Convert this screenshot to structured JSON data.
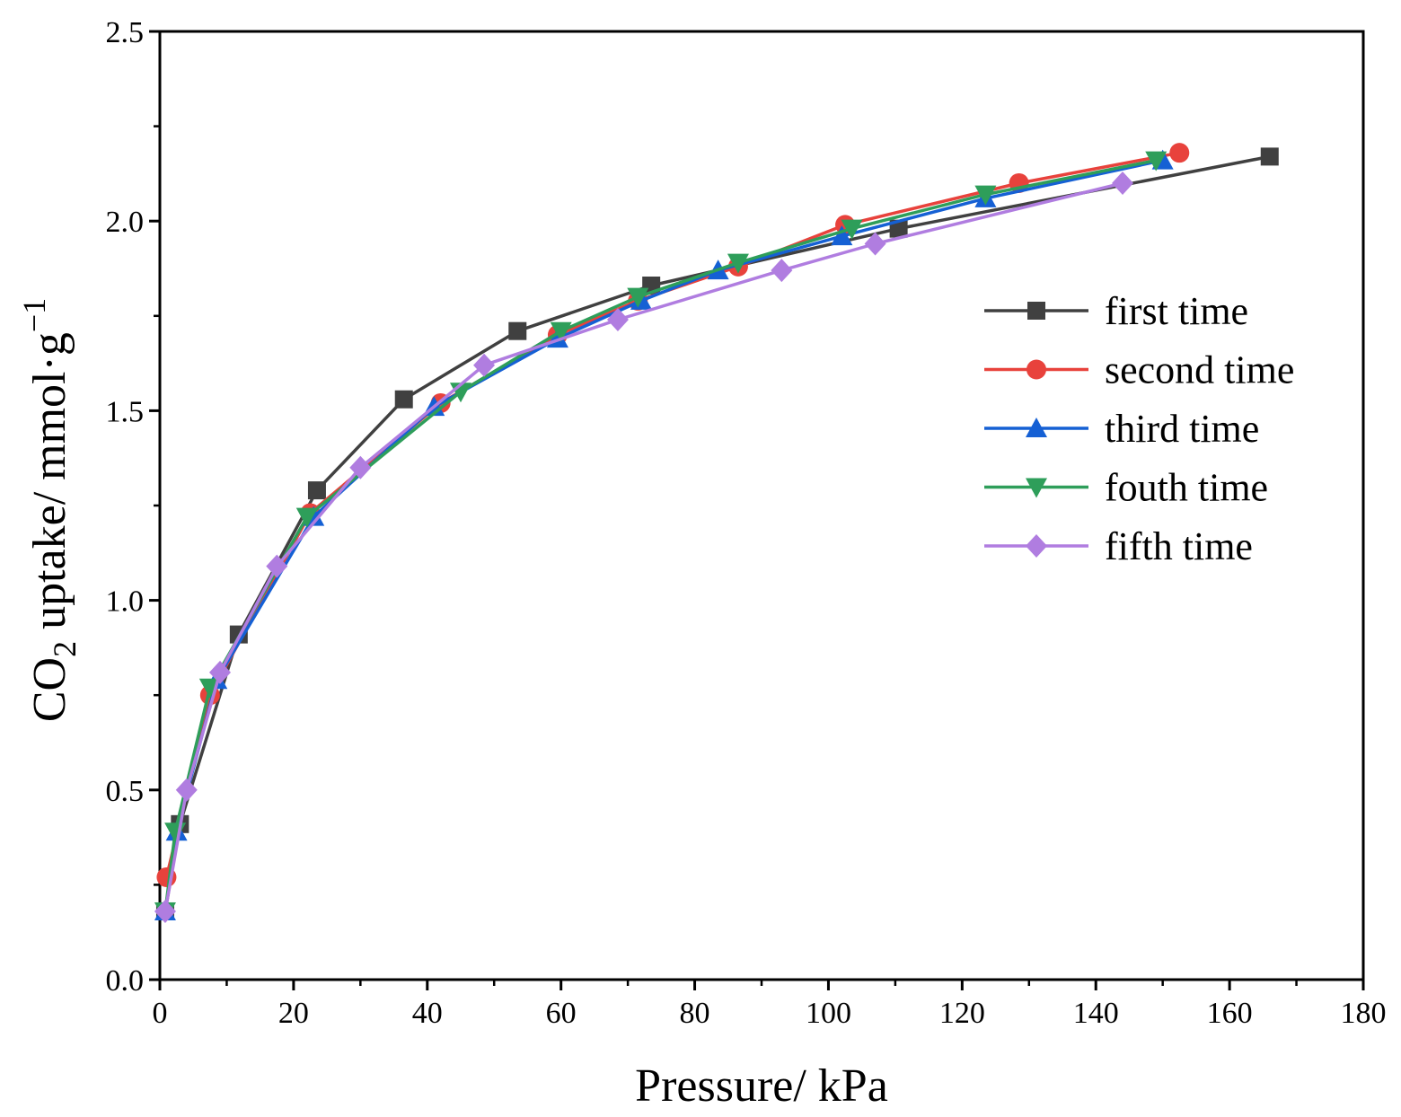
{
  "chart_data": {
    "type": "line",
    "title": "",
    "xlabel": "Pressure/ kPa",
    "ylabel": {
      "prefix": "CO",
      "sub": "2",
      "middle": " uptake/ mmol·g",
      "sup": "−1"
    },
    "xlim": [
      0,
      180
    ],
    "ylim": [
      0,
      2.5
    ],
    "xticks": [
      "0",
      "20",
      "40",
      "60",
      "80",
      "100",
      "120",
      "140",
      "160",
      "180"
    ],
    "yticks": [
      "0.0",
      "0.5",
      "1.0",
      "1.5",
      "2.0",
      "2.5"
    ],
    "legend_position": "center-right",
    "series": [
      {
        "name": "first time",
        "color": "#404040",
        "marker": "square",
        "x": [
          0.8,
          3.0,
          11.8,
          23.5,
          36.5,
          53.5,
          73.5,
          110.5,
          166.0
        ],
        "y": [
          0.18,
          0.41,
          0.91,
          1.29,
          1.53,
          1.71,
          1.83,
          1.98,
          2.17
        ]
      },
      {
        "name": "second time",
        "color": "#e8423c",
        "marker": "circle",
        "x": [
          1.0,
          7.5,
          22.5,
          42.0,
          59.5,
          71.5,
          86.5,
          102.5,
          128.5,
          152.5
        ],
        "y": [
          0.27,
          0.75,
          1.23,
          1.52,
          1.7,
          1.79,
          1.88,
          1.99,
          2.1,
          2.18
        ]
      },
      {
        "name": "third time",
        "color": "#1560d4",
        "marker": "triangle-up",
        "x": [
          0.8,
          2.5,
          8.5,
          23.0,
          41.0,
          59.5,
          72.0,
          83.5,
          102.0,
          123.5,
          150.0
        ],
        "y": [
          0.18,
          0.39,
          0.79,
          1.22,
          1.51,
          1.69,
          1.79,
          1.87,
          1.96,
          2.06,
          2.16
        ]
      },
      {
        "name": "fouth time",
        "color": "#2e9e5a",
        "marker": "triangle-down",
        "x": [
          0.8,
          2.3,
          7.5,
          22.0,
          45.0,
          60.0,
          71.5,
          86.5,
          103.5,
          123.5,
          149.0
        ],
        "y": [
          0.18,
          0.39,
          0.77,
          1.22,
          1.55,
          1.71,
          1.8,
          1.89,
          1.98,
          2.07,
          2.16
        ]
      },
      {
        "name": "fifth time",
        "color": "#b07de0",
        "marker": "diamond",
        "x": [
          0.8,
          4.0,
          9.0,
          17.5,
          30.0,
          48.5,
          68.5,
          93.0,
          107.0,
          144.0
        ],
        "y": [
          0.18,
          0.5,
          0.81,
          1.09,
          1.35,
          1.62,
          1.74,
          1.87,
          1.94,
          2.1
        ]
      }
    ]
  }
}
